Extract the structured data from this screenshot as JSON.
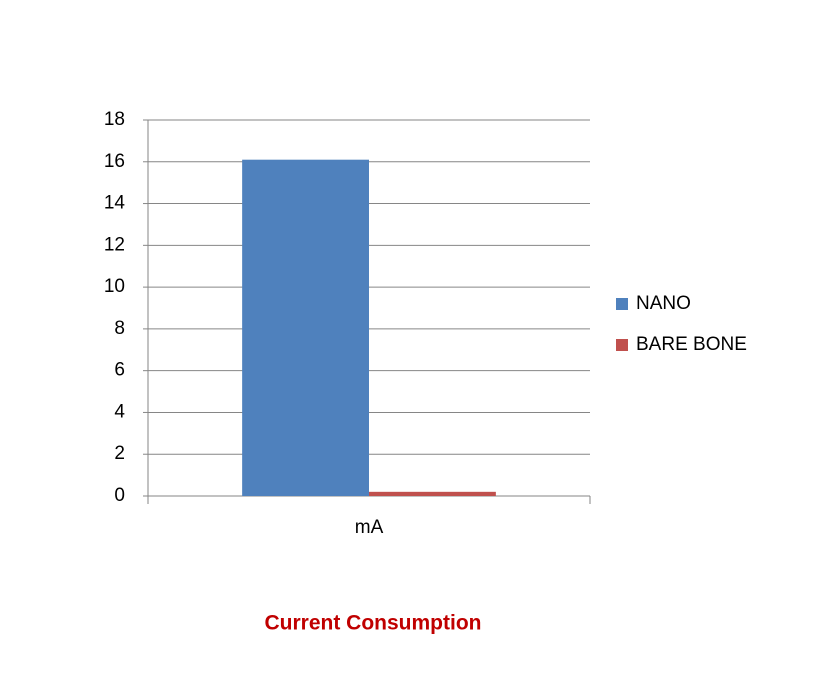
{
  "chart_data": {
    "type": "bar",
    "title": "Current Consumption",
    "categories": [
      "mA"
    ],
    "series": [
      {
        "name": "NANO",
        "color": "#4f81bd",
        "values": [
          16.1
        ]
      },
      {
        "name": "BARE BONE",
        "color": "#c0504d",
        "values": [
          0.2
        ]
      }
    ],
    "ylim": [
      0,
      18
    ],
    "yticks": [
      0,
      2,
      4,
      6,
      8,
      10,
      12,
      14,
      16,
      18
    ],
    "grid": true,
    "legend": "right",
    "title_color": "#c00000"
  }
}
